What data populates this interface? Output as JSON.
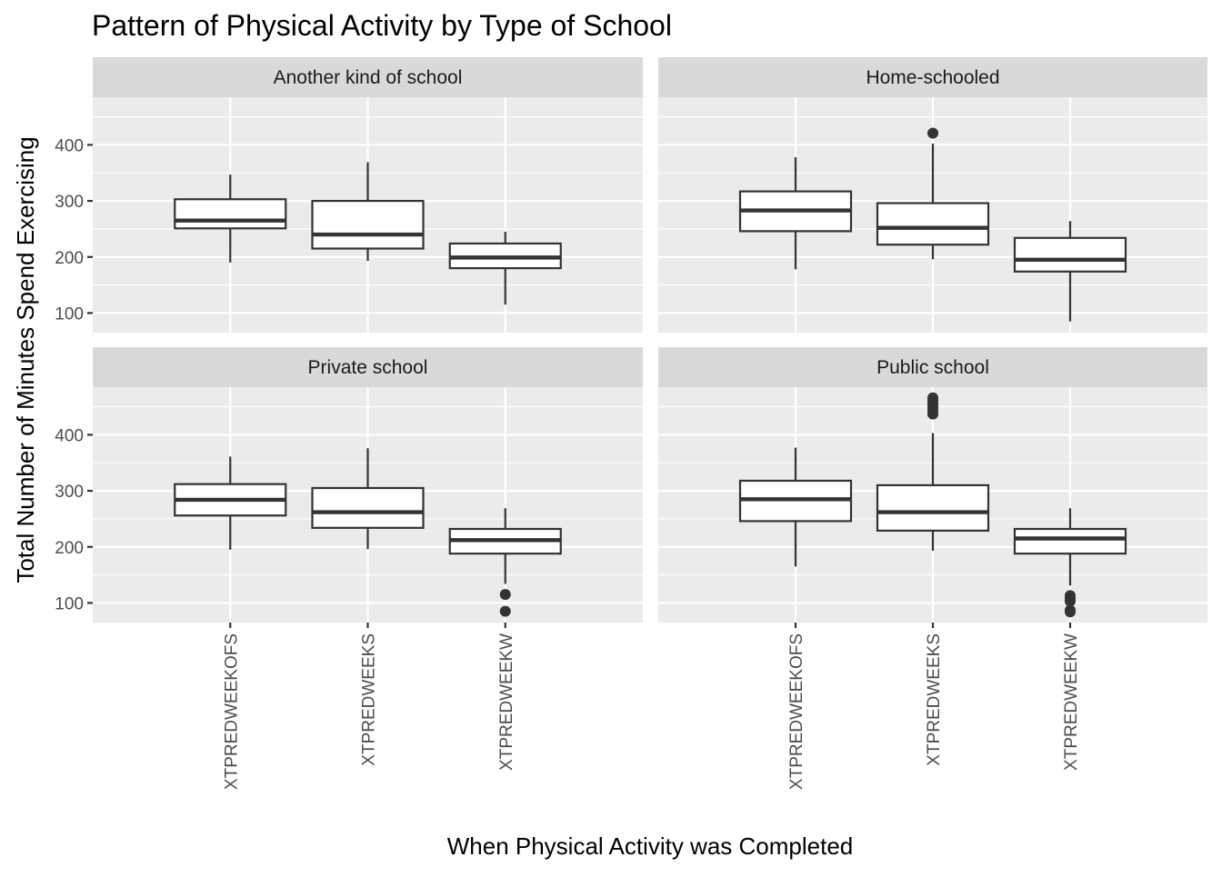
{
  "chart_data": {
    "type": "boxplot",
    "title": "Pattern of Physical Activity by Type of School",
    "xlabel": "When Physical Activity was Completed",
    "ylabel": "Total Number of Minutes Spend Exercising",
    "categories": [
      "XTPREDWEEKOFS",
      "XTPREDWEEKS",
      "XTPREDWEEKW"
    ],
    "ylim": [
      65,
      485
    ],
    "yticks": [
      100,
      200,
      300,
      400
    ],
    "grid": true,
    "facets": [
      {
        "name": "Another kind of school",
        "boxes": [
          {
            "category": "XTPREDWEEKOFS",
            "min": 190,
            "q1": 251,
            "median": 265,
            "q3": 303,
            "max": 347,
            "outliers": []
          },
          {
            "category": "XTPREDWEEKS",
            "min": 193,
            "q1": 215,
            "median": 240,
            "q3": 300,
            "max": 369,
            "outliers": []
          },
          {
            "category": "XTPREDWEEKW",
            "min": 115,
            "q1": 180,
            "median": 199,
            "q3": 224,
            "max": 245,
            "outliers": []
          }
        ]
      },
      {
        "name": "Home-schooled",
        "boxes": [
          {
            "category": "XTPREDWEEKOFS",
            "min": 178,
            "q1": 246,
            "median": 283,
            "q3": 317,
            "max": 378,
            "outliers": []
          },
          {
            "category": "XTPREDWEEKS",
            "min": 196,
            "q1": 222,
            "median": 252,
            "q3": 296,
            "max": 402,
            "outliers": [
              421
            ]
          },
          {
            "category": "XTPREDWEEKW",
            "min": 85,
            "q1": 174,
            "median": 195,
            "q3": 234,
            "max": 264,
            "outliers": []
          }
        ]
      },
      {
        "name": "Private school",
        "boxes": [
          {
            "category": "XTPREDWEEKOFS",
            "min": 195,
            "q1": 256,
            "median": 284,
            "q3": 312,
            "max": 361,
            "outliers": []
          },
          {
            "category": "XTPREDWEEKS",
            "min": 196,
            "q1": 234,
            "median": 262,
            "q3": 305,
            "max": 376,
            "outliers": []
          },
          {
            "category": "XTPREDWEEKW",
            "min": 134,
            "q1": 188,
            "median": 212,
            "q3": 232,
            "max": 269,
            "outliers": [
              115,
              85
            ]
          }
        ]
      },
      {
        "name": "Public school",
        "boxes": [
          {
            "category": "XTPREDWEEKOFS",
            "min": 165,
            "q1": 246,
            "median": 285,
            "q3": 318,
            "max": 377,
            "outliers": []
          },
          {
            "category": "XTPREDWEEKS",
            "min": 193,
            "q1": 229,
            "median": 262,
            "q3": 310,
            "max": 403,
            "outliers": [
              466,
              461,
              455,
              449,
              443,
              437
            ]
          },
          {
            "category": "XTPREDWEEKW",
            "min": 131,
            "q1": 188,
            "median": 215,
            "q3": 232,
            "max": 269,
            "outliers": [
              113,
              108,
              103,
              87,
              84
            ]
          }
        ]
      }
    ]
  }
}
